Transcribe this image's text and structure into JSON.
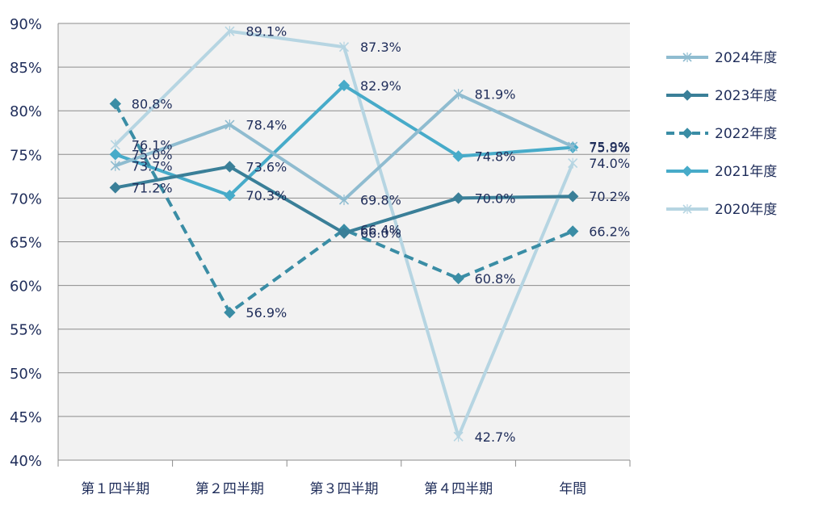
{
  "chart_data": {
    "type": "line",
    "categories": [
      "第１四半期",
      "第２四半期",
      "第３四半期",
      "第４四半期",
      "年間"
    ],
    "ylim": [
      40,
      90
    ],
    "y_ticks": [
      "40%",
      "45%",
      "50%",
      "55%",
      "60%",
      "65%",
      "70%",
      "75%",
      "80%",
      "85%",
      "90%"
    ],
    "grid": true,
    "legend_position": "right",
    "series": [
      {
        "name": "2024年度",
        "values": [
          73.7,
          78.4,
          69.8,
          81.9,
          75.9
        ],
        "labels": [
          "73.7%",
          "78.4%",
          "69.8%",
          "81.9%",
          "75.9%"
        ],
        "color": "#8fbcd0",
        "marker": "x",
        "dash": false
      },
      {
        "name": "2023年度",
        "values": [
          71.2,
          73.6,
          66.0,
          70.0,
          70.2
        ],
        "labels": [
          "71.2%",
          "73.6%",
          "66.0%",
          "70.0%",
          "70.2%"
        ],
        "color": "#3a7f98",
        "marker": "diamond",
        "dash": false
      },
      {
        "name": "2022年度",
        "values": [
          80.8,
          56.9,
          66.4,
          60.8,
          66.2
        ],
        "labels": [
          "80.8%",
          "56.9%",
          "66.4%",
          "60.8%",
          "66.2%"
        ],
        "color": "#3a8da5",
        "marker": "diamond",
        "dash": true
      },
      {
        "name": "2021年度",
        "values": [
          75.0,
          70.3,
          82.9,
          74.8,
          75.8
        ],
        "labels": [
          "75.0%",
          "70.3%",
          "82.9%",
          "74.8%",
          "75.8%"
        ],
        "color": "#47abc9",
        "marker": "diamond",
        "dash": false
      },
      {
        "name": "2020年度",
        "values": [
          76.1,
          89.1,
          87.3,
          42.7,
          74.0
        ],
        "labels": [
          "76.1%",
          "89.1%",
          "87.3%",
          "42.7%",
          "74.0%"
        ],
        "color": "#b6d5e2",
        "marker": "x",
        "dash": false
      }
    ]
  }
}
